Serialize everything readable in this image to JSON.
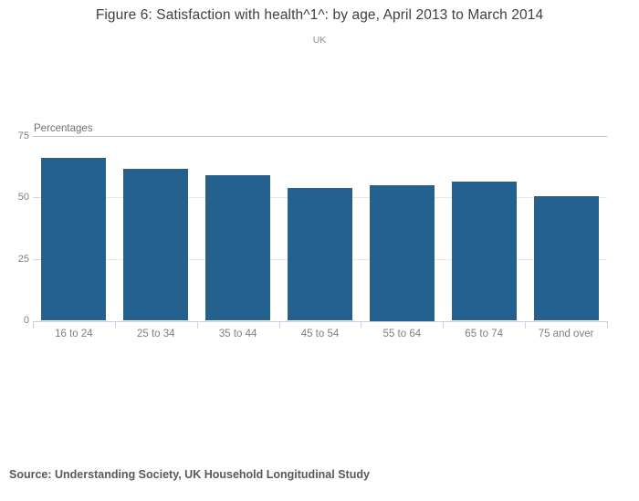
{
  "title": "Figure 6: Satisfaction with health^1^: by age, April 2013 to March 2014",
  "subtitle": "UK",
  "source_note": "Source: Understanding Society, UK Household Longitudinal Study",
  "chart_data": {
    "type": "bar",
    "title": "Figure 6: Satisfaction with health^1^: by age, April 2013 to March 2014",
    "subtitle": "UK",
    "categories": [
      "16 to 24",
      "25 to 34",
      "35 to 44",
      "45 to 54",
      "55 to 64",
      "65 to 74",
      "75 and over"
    ],
    "values": [
      66,
      61.5,
      59,
      54,
      55,
      56.5,
      50.5
    ],
    "xlabel": "",
    "ylabel": "Percentages",
    "ylim": [
      0,
      75
    ],
    "yticks": [
      0,
      25,
      50,
      75
    ],
    "grid": true,
    "legend": false,
    "annotation": "Source: Understanding Society, UK Household Longitudinal Study"
  },
  "colors": {
    "bar": "#25618f",
    "title_text": "#404040",
    "subtitle_text": "#8c8c8c",
    "tick_text": "#7f7f7f",
    "axis_line": "#c6d4e1",
    "gridline": "#e8e8e8",
    "top_gridline": "#c2c2c2",
    "tick_mark": "#d4d4d4",
    "source_text": "#595959"
  }
}
